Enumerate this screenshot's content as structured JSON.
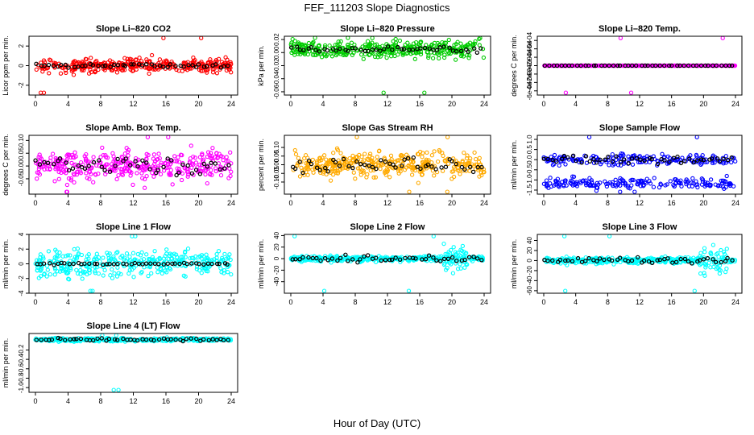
{
  "figure": {
    "title": "FEF_111203  Slope Diagnostics",
    "xlabel": "Hour of Day (UTC)"
  },
  "chart_data": [
    {
      "type": "scatter",
      "title": "Slope Li–820 CO2",
      "ylabel": "Licor ppm per min.",
      "xlim": [
        0,
        24
      ],
      "ylim": [
        -3,
        3
      ],
      "xticks": [
        0,
        4,
        8,
        12,
        16,
        20,
        24
      ],
      "yticks": [
        -2,
        0,
        2
      ],
      "ytick_labels": [
        "-2",
        "0",
        "2"
      ],
      "colors": {
        "all": "#ff0000",
        "hourly": "#000000"
      },
      "sim": {
        "amp": 0.5,
        "hamp": 0.15,
        "seed": 11
      }
    },
    {
      "type": "scatter",
      "title": "Slope Li–820 Pressure",
      "ylabel": "kPa per min.",
      "xlim": [
        0,
        24
      ],
      "ylim": [
        -0.065,
        0.025
      ],
      "xticks": [
        0,
        4,
        8,
        12,
        16,
        20,
        24
      ],
      "yticks": [
        -0.06,
        -0.04,
        -0.02,
        0,
        0.02
      ],
      "ytick_labels": [
        "-0.06",
        "-0.04",
        "-0.02",
        "0.00",
        "0.02"
      ],
      "colors": {
        "all": "#00cc00",
        "hourly": "#000000"
      },
      "sim": {
        "amp": 0.009,
        "hamp": 0.003,
        "seed": 23,
        "offset": 0.005
      }
    },
    {
      "type": "scatter",
      "title": "Slope Li–820 Temp.",
      "ylabel": "degrees C per min.",
      "xlim": [
        0,
        24
      ],
      "ylim": [
        -0.0007,
        0.0007
      ],
      "xticks": [
        0,
        4,
        8,
        12,
        16,
        20,
        24
      ],
      "yticks": [
        -0.0006,
        -0.0004,
        -0.0002,
        0,
        0.0002,
        0.0004,
        0.0006
      ],
      "ytick_labels": [
        "-6e-04",
        "-4e-04",
        "-2e-04",
        "0e+00",
        "2e-04",
        "4e-04",
        "6e-04"
      ],
      "colors": {
        "all": "#ff00ff",
        "hourly": "#000000"
      },
      "sim": {
        "amp": 0,
        "hamp": 0,
        "seed": 31
      }
    },
    {
      "type": "scatter",
      "title": "Slope Amb. Box Temp.",
      "ylabel": "degrees C per min.",
      "xlim": [
        0,
        24
      ],
      "ylim": [
        -0.11,
        0.12
      ],
      "xticks": [
        0,
        4,
        8,
        12,
        16,
        20,
        24
      ],
      "yticks": [
        -0.05,
        0,
        0.05,
        0.1
      ],
      "ytick_labels": [
        "-0.05",
        "0.00",
        "0.05",
        "0.10"
      ],
      "colors": {
        "all": "#ff00ff",
        "hourly": "#000000"
      },
      "sim": {
        "amp": 0.04,
        "hamp": 0.02,
        "seed": 41
      }
    },
    {
      "type": "scatter",
      "title": "Slope Gas Stream RH",
      "ylabel": "percent per min.",
      "xlim": [
        0,
        24
      ],
      "ylim": [
        -0.17,
        0.17
      ],
      "xticks": [
        0,
        4,
        8,
        12,
        16,
        20,
        24
      ],
      "yticks": [
        -0.1,
        -0.05,
        0,
        0.05,
        0.1
      ],
      "ytick_labels": [
        "-0.10",
        "-0.05",
        "0.00",
        "0.05",
        "0.10"
      ],
      "colors": {
        "all": "#ffaa00",
        "hourly": "#000000"
      },
      "sim": {
        "amp": 0.05,
        "hamp": 0.03,
        "seed": 53
      }
    },
    {
      "type": "scatter",
      "title": "Slope Sample Flow",
      "ylabel": "ml/min per min.",
      "xlim": [
        0,
        24
      ],
      "ylim": [
        -1.7,
        1.2
      ],
      "xticks": [
        0,
        4,
        8,
        12,
        16,
        20,
        24
      ],
      "yticks": [
        -1.5,
        -1,
        -0.5,
        0,
        0.5,
        1
      ],
      "ytick_labels": [
        "-1.5",
        "-1.0",
        "-0.5",
        "0.0",
        "0.5",
        "1.0"
      ],
      "colors": {
        "all": "#0000ff",
        "hourly": "#000000"
      },
      "sim": {
        "amp": 0.18,
        "hamp": 0.15,
        "seed": 67,
        "bands": [
          0,
          -1.15
        ]
      }
    },
    {
      "type": "scatter",
      "title": "Slope Line 1 Flow",
      "ylabel": "ml/min per min.",
      "xlim": [
        0,
        24
      ],
      "ylim": [
        -4,
        4
      ],
      "xticks": [
        0,
        4,
        8,
        12,
        16,
        20,
        24
      ],
      "yticks": [
        -4,
        -2,
        0,
        2,
        4
      ],
      "ytick_labels": [
        "-4",
        "-2",
        "0",
        "2",
        "4"
      ],
      "colors": {
        "all": "#00ffff",
        "hourly": "#000000"
      },
      "sim": {
        "amp": 1.2,
        "hamp": 0.1,
        "seed": 71
      }
    },
    {
      "type": "scatter",
      "title": "Slope Line 2 Flow",
      "ylabel": "ml/min per min.",
      "xlim": [
        0,
        24
      ],
      "ylim": [
        -60,
        42
      ],
      "xticks": [
        0,
        4,
        8,
        12,
        16,
        20,
        24
      ],
      "yticks": [
        -40,
        -20,
        0,
        20,
        40
      ],
      "ytick_labels": [
        "-40",
        "-20",
        "0",
        "20",
        "40"
      ],
      "colors": {
        "all": "#00ffff",
        "hourly": "#000000"
      },
      "sim": {
        "amp": 3,
        "hamp": 4,
        "seed": 83,
        "burst": [
          19,
          22,
          18
        ]
      }
    },
    {
      "type": "scatter",
      "title": "Slope Line 3 Flow",
      "ylabel": "ml/min per min.",
      "xlim": [
        0,
        24
      ],
      "ylim": [
        -65,
        52
      ],
      "xticks": [
        0,
        4,
        8,
        12,
        16,
        20,
        24
      ],
      "yticks": [
        -60,
        -40,
        -20,
        0,
        20,
        40
      ],
      "ytick_labels": [
        "-60",
        "-40",
        "-20",
        "0",
        "20",
        "40"
      ],
      "colors": {
        "all": "#00ffff",
        "hourly": "#000000"
      },
      "sim": {
        "amp": 4,
        "hamp": 4,
        "seed": 97,
        "burst": [
          19.5,
          23,
          20
        ]
      }
    },
    {
      "type": "scatter",
      "title": "Slope Line 4 (LT) Flow",
      "ylabel": "ml/min per min.",
      "xlim": [
        0,
        24
      ],
      "ylim": [
        -1.1,
        0.15
      ],
      "xticks": [
        0,
        4,
        8,
        12,
        16,
        20,
        24
      ],
      "yticks": [
        -1,
        -0.8,
        -0.6,
        -0.4,
        -0.2
      ],
      "ytick_labels": [
        "-1.0",
        "-0.8",
        "-0.6",
        "-0.4",
        "-0.2"
      ],
      "colors": {
        "all": "#00ffff",
        "hourly": "#000000"
      },
      "sim": {
        "amp": 0.025,
        "hamp": 0.02,
        "seed": 101,
        "offset": 0.02
      }
    }
  ]
}
